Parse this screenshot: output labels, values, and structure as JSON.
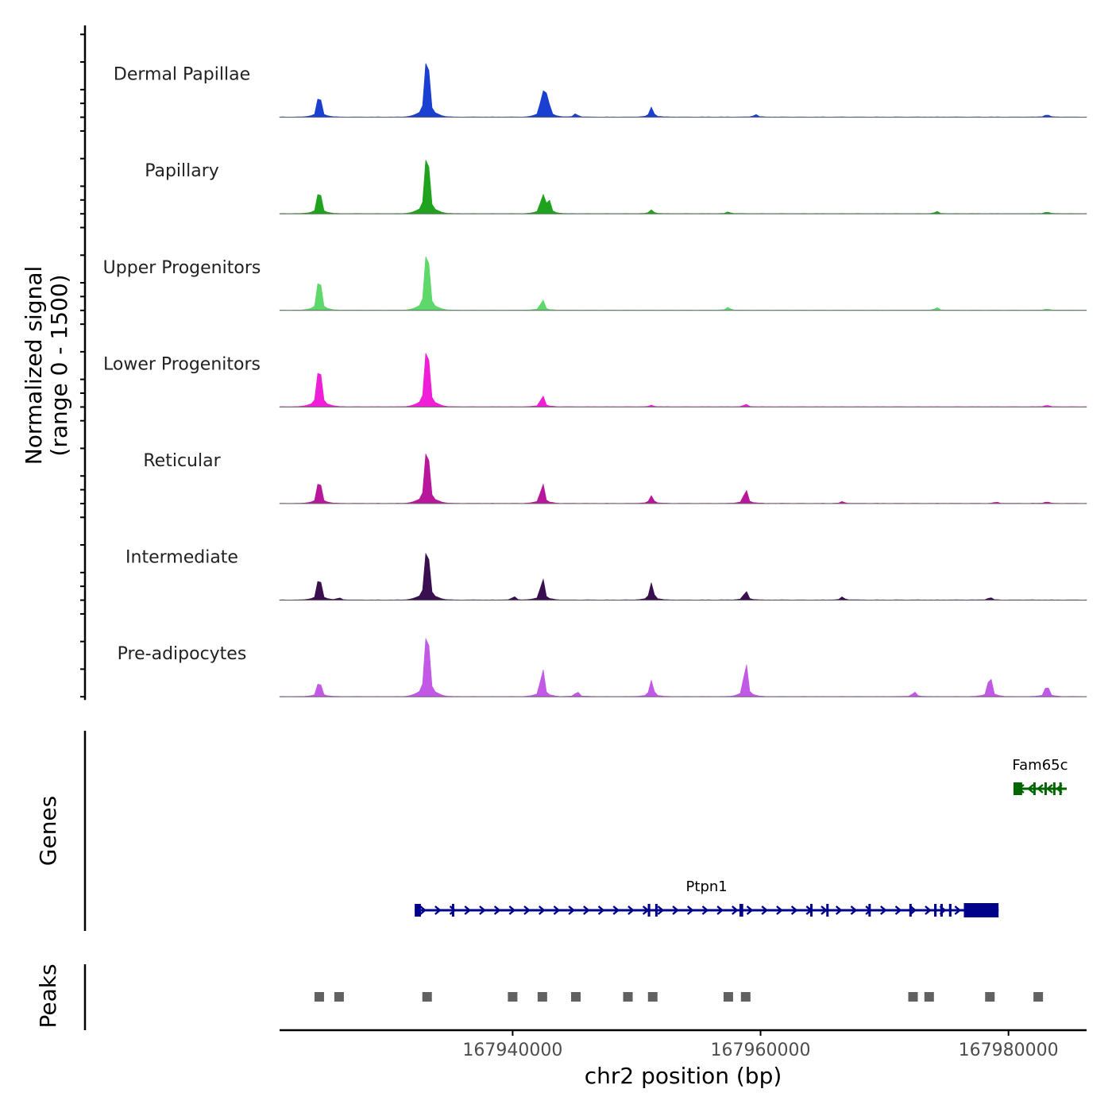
{
  "chart_data": {
    "type": "area",
    "y_axis_title": "Normalized signal",
    "y_axis_range_label": "(range 0 - 1500)",
    "ylim": [
      0,
      1500
    ],
    "x_axis_title": "chr2 position (bp)",
    "xlim": [
      167921200,
      167986300
    ],
    "x_ticks": [
      {
        "value": 167940000,
        "label": "167940000"
      },
      {
        "value": 167960000,
        "label": "167960000"
      },
      {
        "value": 167980000,
        "label": "167980000"
      }
    ],
    "tracks": [
      {
        "name": "Dermal Papillae",
        "color": "#1a3fd1",
        "peaks": [
          [
            167924400,
            580
          ],
          [
            167933100,
            1500
          ],
          [
            167942400,
            600
          ],
          [
            167942800,
            520
          ],
          [
            167945100,
            80
          ],
          [
            167951200,
            230
          ],
          [
            167959600,
            60
          ],
          [
            167983100,
            60
          ]
        ]
      },
      {
        "name": "Papillary",
        "color": "#1fa31f",
        "peaks": [
          [
            167924400,
            620
          ],
          [
            167933100,
            1500
          ],
          [
            167942400,
            470
          ],
          [
            167942900,
            330
          ],
          [
            167951200,
            90
          ],
          [
            167957400,
            40
          ],
          [
            167974200,
            50
          ],
          [
            167983100,
            40
          ]
        ]
      },
      {
        "name": "Upper Progenitors",
        "color": "#5fd86b",
        "peaks": [
          [
            167924400,
            860
          ],
          [
            167933100,
            1500
          ],
          [
            167942400,
            260
          ],
          [
            167957400,
            70
          ],
          [
            167974200,
            60
          ],
          [
            167983100,
            30
          ]
        ]
      },
      {
        "name": "Lower Progenitors",
        "color": "#ee1fd6",
        "peaks": [
          [
            167924400,
            980
          ],
          [
            167933100,
            1500
          ],
          [
            167942400,
            280
          ],
          [
            167951200,
            40
          ],
          [
            167958800,
            60
          ],
          [
            167983100,
            40
          ]
        ]
      },
      {
        "name": "Reticular",
        "color": "#b8179c",
        "peaks": [
          [
            167924400,
            620
          ],
          [
            167933100,
            1380
          ],
          [
            167942400,
            500
          ],
          [
            167951200,
            180
          ],
          [
            167958800,
            340
          ],
          [
            167966600,
            40
          ],
          [
            167979000,
            30
          ],
          [
            167983100,
            40
          ]
        ]
      },
      {
        "name": "Intermediate",
        "color": "#3a0f4f",
        "peaks": [
          [
            167924400,
            600
          ],
          [
            167926000,
            50
          ],
          [
            167933100,
            1300
          ],
          [
            167940100,
            80
          ],
          [
            167942400,
            540
          ],
          [
            167951200,
            400
          ],
          [
            167958800,
            220
          ],
          [
            167966600,
            70
          ],
          [
            167978500,
            60
          ]
        ]
      },
      {
        "name": "Pre-adipocytes",
        "color": "#c158e6",
        "peaks": [
          [
            167924400,
            400
          ],
          [
            167933100,
            1650
          ],
          [
            167942400,
            700
          ],
          [
            167945200,
            120
          ],
          [
            167951200,
            380
          ],
          [
            167958800,
            840
          ],
          [
            167972400,
            110
          ],
          [
            167978500,
            520
          ],
          [
            167983100,
            280
          ]
        ]
      }
    ],
    "genes_title": "Genes",
    "genes": [
      {
        "name": "Ptpn1",
        "strand": "+",
        "start": 167932100,
        "end": 167979200,
        "color": "#00008b",
        "exons": [
          [
            167932100,
            167932600
          ],
          [
            167935100,
            167935200
          ],
          [
            167950900,
            167951100
          ],
          [
            167951500,
            167951600
          ],
          [
            167958300,
            167958600
          ],
          [
            167964000,
            167964100
          ],
          [
            167965300,
            167965400
          ],
          [
            167968700,
            167968800
          ],
          [
            167972000,
            167972100
          ],
          [
            167974000,
            167974200
          ],
          [
            167974500,
            167974700
          ],
          [
            167975200,
            167975400
          ],
          [
            167976400,
            167979200
          ]
        ]
      },
      {
        "name": "Fam65c",
        "strand": "-",
        "start": 167980400,
        "end": 167984700,
        "color": "#006400",
        "exons": [
          [
            167980400,
            167981100
          ],
          [
            167982000,
            167982100
          ],
          [
            167982900,
            167983000
          ],
          [
            167983600,
            167983700
          ],
          [
            167984100,
            167984200
          ]
        ]
      }
    ],
    "peaks_title": "Peaks",
    "peak_regions": [
      167924400,
      167926000,
      167933100,
      167940000,
      167942400,
      167945100,
      167949300,
      167951300,
      167957400,
      167958800,
      167972300,
      167973600,
      167978500,
      167982400
    ]
  }
}
